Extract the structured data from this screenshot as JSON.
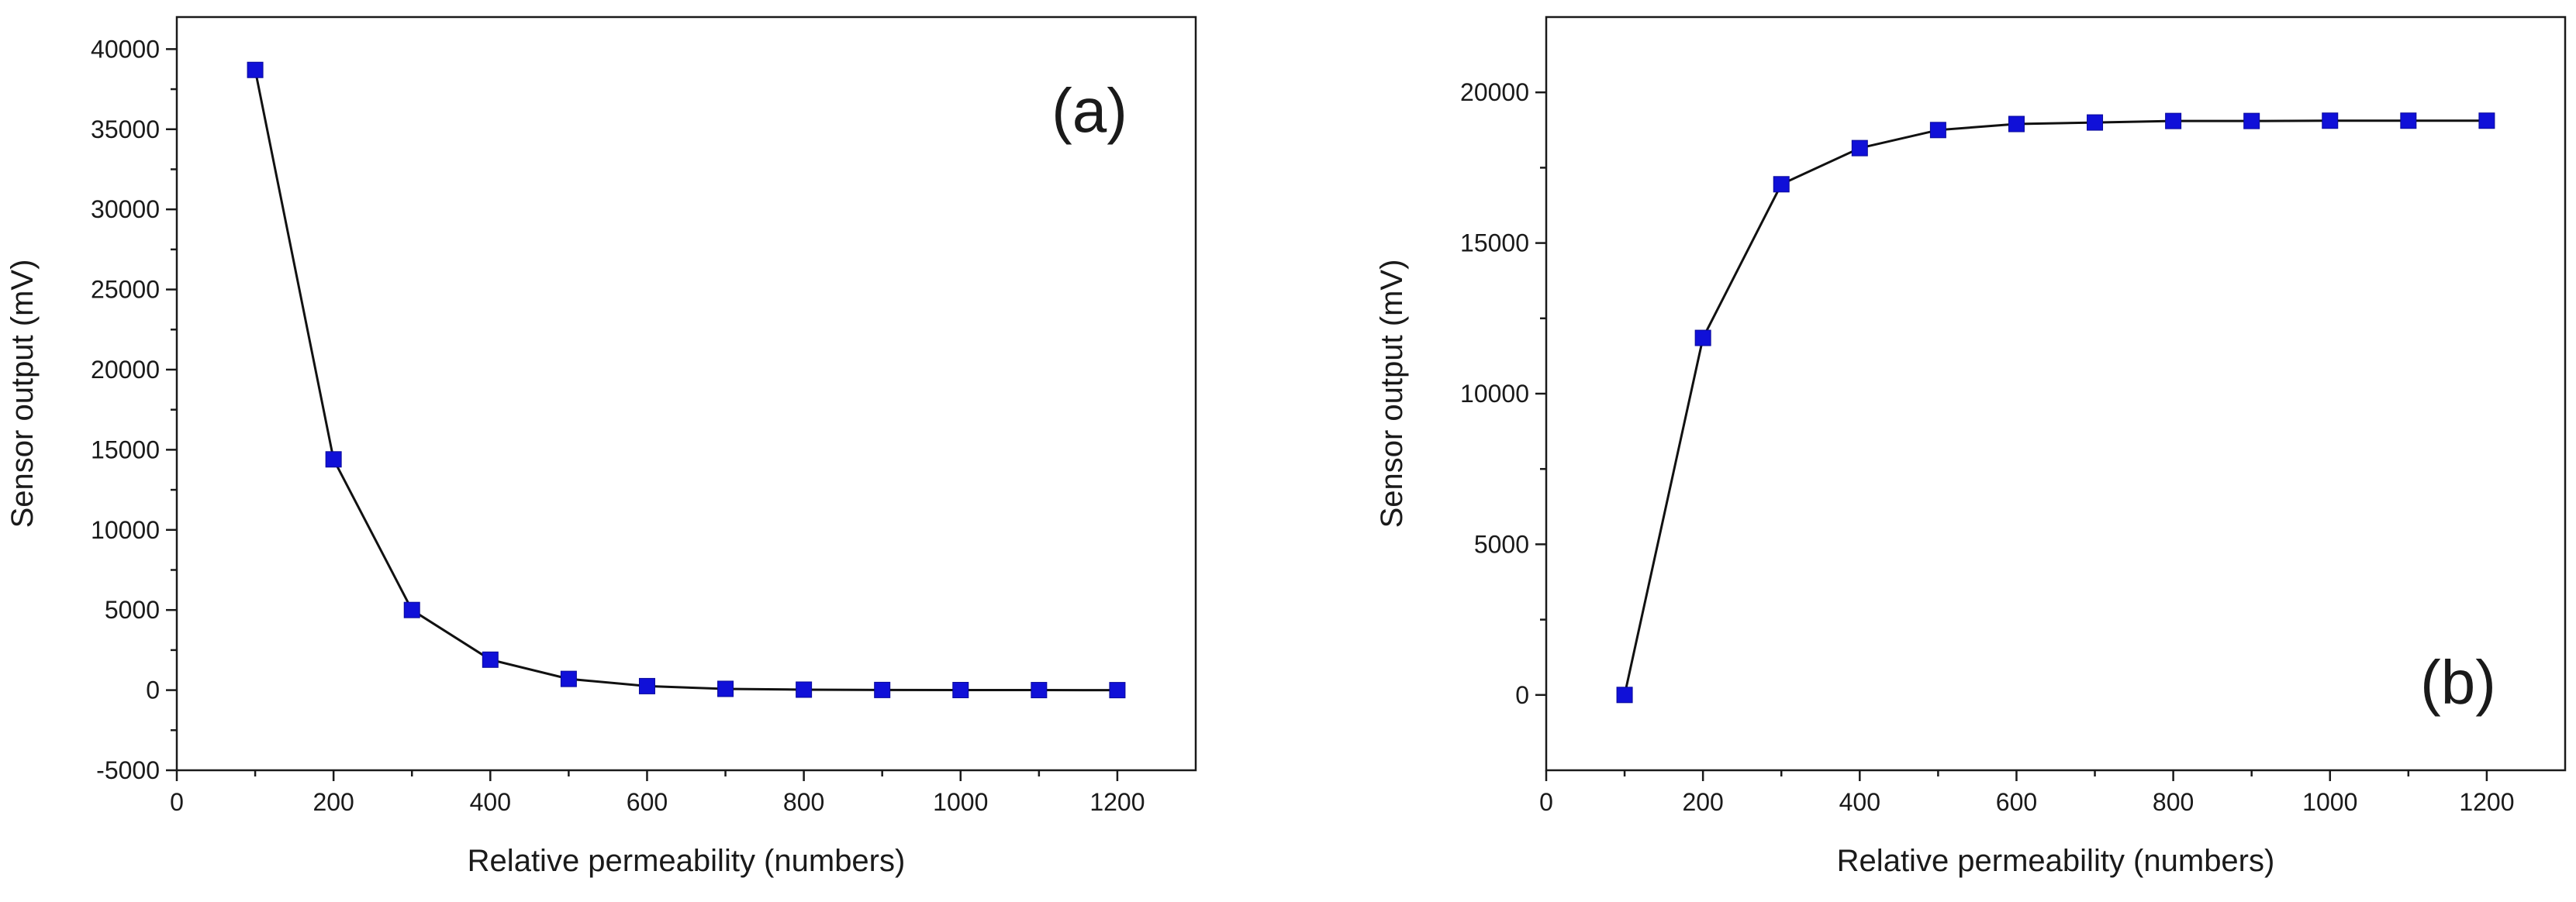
{
  "chart_data": [
    {
      "type": "line",
      "panel_label": "(a)",
      "title": "",
      "xlabel": "Relative permeability (numbers)",
      "ylabel": "Sensor output (mV)",
      "xlim": [
        0,
        1300
      ],
      "ylim": [
        -5000,
        42000
      ],
      "xticks": [
        0,
        200,
        400,
        600,
        800,
        1000,
        1200
      ],
      "yticks": [
        -5000,
        0,
        5000,
        10000,
        15000,
        20000,
        25000,
        30000,
        35000,
        40000
      ],
      "series": [
        {
          "name": "Sensor output",
          "color": "#1010d8",
          "marker": "square",
          "x": [
            100,
            200,
            300,
            400,
            500,
            600,
            700,
            800,
            900,
            1000,
            1100,
            1200
          ],
          "y": [
            38700,
            14400,
            5000,
            1900,
            700,
            250,
            80,
            30,
            10,
            5,
            2,
            0
          ]
        }
      ]
    },
    {
      "type": "line",
      "panel_label": "(b)",
      "title": "",
      "xlabel": "Relative permeability (numbers)",
      "ylabel": "Sensor output (mV)",
      "xlim": [
        0,
        1300
      ],
      "ylim": [
        -2500,
        22500
      ],
      "xticks": [
        0,
        200,
        400,
        600,
        800,
        1000,
        1200
      ],
      "yticks": [
        0,
        5000,
        10000,
        15000,
        20000
      ],
      "series": [
        {
          "name": "Sensor output",
          "color": "#1010d8",
          "marker": "square",
          "x": [
            100,
            200,
            300,
            400,
            500,
            600,
            700,
            800,
            900,
            1000,
            1100,
            1200
          ],
          "y": [
            0,
            11850,
            16950,
            18150,
            18750,
            18950,
            19000,
            19050,
            19050,
            19060,
            19060,
            19060
          ]
        }
      ]
    }
  ]
}
